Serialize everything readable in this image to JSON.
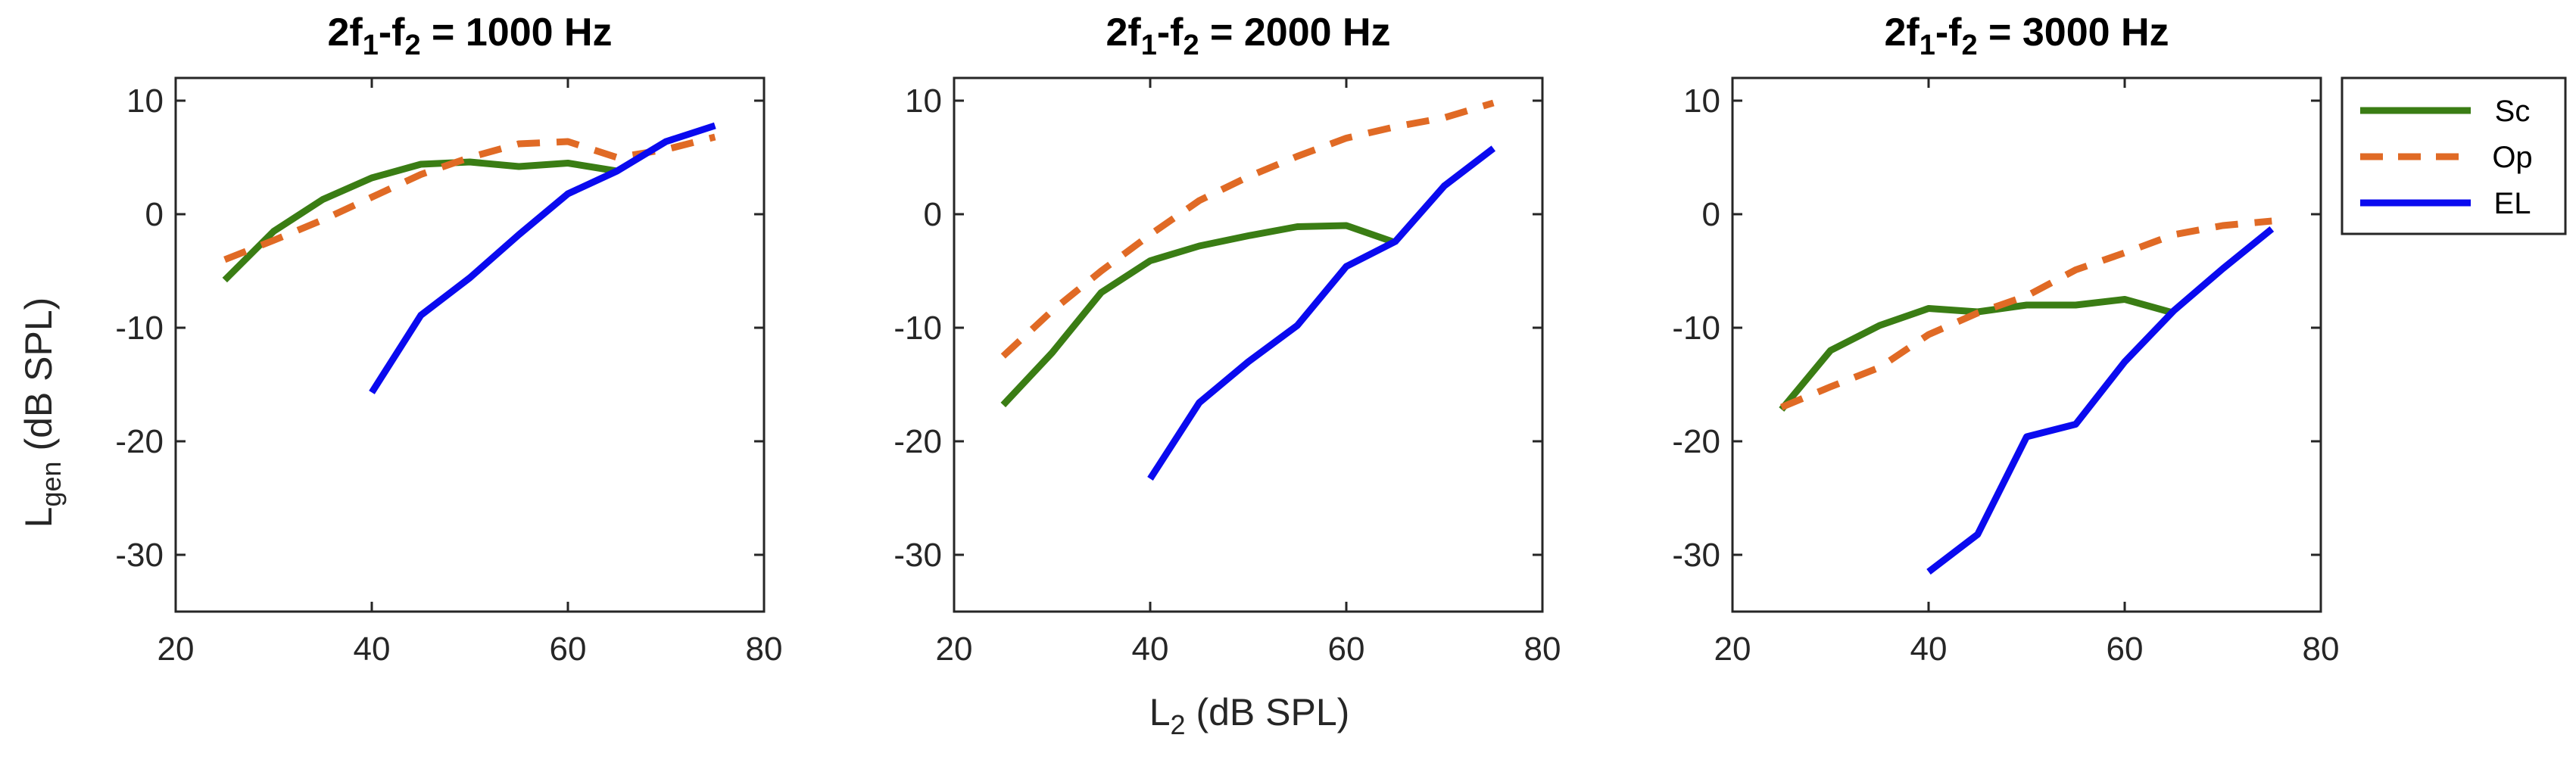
{
  "chart_data": [
    {
      "type": "line",
      "title": {
        "base": "2f",
        "sub1": "1",
        "mid": "-f",
        "sub2": "2",
        "rest": " = 1000 Hz"
      },
      "xlim": [
        20,
        80
      ],
      "ylim": [
        -35,
        12
      ],
      "xticks": [
        20,
        40,
        60,
        80
      ],
      "yticks": [
        10,
        0,
        -10,
        -20,
        -30
      ],
      "series": [
        {
          "name": "Sc",
          "color": "#3a7d14",
          "dash": "solid",
          "x": [
            25,
            30,
            35,
            40,
            45,
            50,
            55,
            60,
            65
          ],
          "y": [
            -5.8,
            -1.5,
            1.3,
            3.2,
            4.4,
            4.6,
            4.2,
            4.5,
            3.8
          ]
        },
        {
          "name": "Op",
          "color": "#e06a25",
          "dash": "dashed",
          "x": [
            25,
            30,
            35,
            40,
            45,
            50,
            55,
            60,
            65,
            70,
            75
          ],
          "y": [
            -4.0,
            -2.3,
            -0.5,
            1.5,
            3.5,
            5.0,
            6.2,
            6.4,
            5.0,
            5.7,
            6.8
          ]
        },
        {
          "name": "EL",
          "color": "#0a0aef",
          "dash": "solid",
          "x": [
            40,
            45,
            50,
            55,
            60,
            65,
            70,
            75
          ],
          "y": [
            -15.7,
            -8.9,
            -5.6,
            -1.8,
            1.8,
            3.8,
            6.4,
            7.8
          ]
        }
      ]
    },
    {
      "type": "line",
      "title": {
        "base": "2f",
        "sub1": "1",
        "mid": "-f",
        "sub2": "2",
        "rest": " = 2000 Hz"
      },
      "xlim": [
        20,
        80
      ],
      "ylim": [
        -35,
        12
      ],
      "xticks": [
        20,
        40,
        60,
        80
      ],
      "yticks": [
        10,
        0,
        -10,
        -20,
        -30
      ],
      "series": [
        {
          "name": "Sc",
          "color": "#3a7d14",
          "dash": "solid",
          "x": [
            25,
            30,
            35,
            40,
            45,
            50,
            55,
            60,
            65
          ],
          "y": [
            -16.8,
            -12.2,
            -6.9,
            -4.1,
            -2.8,
            -1.9,
            -1.1,
            -1.0,
            -2.5
          ]
        },
        {
          "name": "Op",
          "color": "#e06a25",
          "dash": "dashed",
          "x": [
            25,
            30,
            35,
            40,
            45,
            50,
            55,
            60,
            65,
            70,
            75
          ],
          "y": [
            -12.5,
            -8.5,
            -5.0,
            -1.8,
            1.2,
            3.3,
            5.1,
            6.7,
            7.7,
            8.5,
            9.8
          ]
        },
        {
          "name": "EL",
          "color": "#0a0aef",
          "dash": "solid",
          "x": [
            40,
            45,
            50,
            55,
            60,
            65,
            70,
            75
          ],
          "y": [
            -23.3,
            -16.6,
            -13.0,
            -9.8,
            -4.6,
            -2.4,
            2.5,
            5.8
          ]
        }
      ]
    },
    {
      "type": "line",
      "title": {
        "base": "2f",
        "sub1": "1",
        "mid": "-f",
        "sub2": "2",
        "rest": " = 3000 Hz"
      },
      "xlim": [
        20,
        80
      ],
      "ylim": [
        -35,
        12
      ],
      "xticks": [
        20,
        40,
        60,
        80
      ],
      "yticks": [
        10,
        0,
        -10,
        -20,
        -30
      ],
      "series": [
        {
          "name": "Sc",
          "color": "#3a7d14",
          "dash": "solid",
          "x": [
            25,
            30,
            35,
            40,
            45,
            50,
            55,
            60,
            65
          ],
          "y": [
            -17.2,
            -12.0,
            -9.8,
            -8.3,
            -8.6,
            -8.0,
            -8.0,
            -7.5,
            -8.7
          ]
        },
        {
          "name": "Op",
          "color": "#e06a25",
          "dash": "dashed",
          "x": [
            25,
            30,
            35,
            40,
            45,
            50,
            55,
            60,
            65,
            70,
            75
          ],
          "y": [
            -17.0,
            -15.2,
            -13.5,
            -10.6,
            -8.7,
            -7.2,
            -4.9,
            -3.4,
            -1.8,
            -1.0,
            -0.6
          ]
        },
        {
          "name": "EL",
          "color": "#0a0aef",
          "dash": "solid",
          "x": [
            40,
            45,
            50,
            55,
            60,
            65,
            70,
            75
          ],
          "y": [
            -31.5,
            -28.2,
            -19.6,
            -18.5,
            -13.0,
            -8.5,
            -4.8,
            -1.3
          ]
        }
      ]
    }
  ],
  "labels": {
    "ylabel": {
      "base": "L",
      "sub": "gen",
      "rest": " (dB SPL)"
    },
    "xlabel": {
      "base": "L",
      "sub": "2",
      "rest": " (dB SPL)"
    }
  },
  "legend": {
    "position": "top-right-outside",
    "entries": [
      {
        "label": "Sc",
        "color": "#3a7d14",
        "dash": "solid"
      },
      {
        "label": "Op",
        "color": "#e06a25",
        "dash": "dashed"
      },
      {
        "label": "EL",
        "color": "#0a0aef",
        "dash": "solid"
      }
    ]
  }
}
